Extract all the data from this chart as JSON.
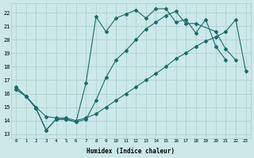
{
  "xlabel": "Humidex (Indice chaleur)",
  "bg_color": "#cce8e8",
  "grid_color": "#aacccc",
  "line_color": "#1a6b6b",
  "xlim": [
    -0.5,
    23.5
  ],
  "ylim": [
    12.7,
    22.7
  ],
  "yticks": [
    13,
    14,
    15,
    16,
    17,
    18,
    19,
    20,
    21,
    22
  ],
  "xticks": [
    0,
    1,
    2,
    3,
    4,
    5,
    6,
    7,
    8,
    9,
    10,
    11,
    12,
    13,
    14,
    15,
    16,
    17,
    18,
    19,
    20,
    21,
    22,
    23
  ],
  "line1_x": [
    0,
    1,
    2,
    3,
    4,
    5,
    6,
    7,
    8,
    9,
    10,
    11,
    12,
    13,
    14,
    15,
    16,
    17,
    18,
    19,
    20,
    21
  ],
  "line1_y": [
    16.5,
    15.8,
    14.9,
    13.3,
    14.1,
    14.1,
    13.9,
    16.8,
    21.7,
    20.6,
    21.6,
    21.9,
    22.2,
    21.6,
    22.3,
    22.3,
    21.3,
    21.5,
    20.5,
    21.5,
    19.5,
    18.5
  ],
  "line2_x": [
    0,
    1,
    2,
    3,
    4,
    5,
    6,
    7,
    8,
    9,
    10,
    11,
    12,
    13,
    14,
    15,
    16,
    17,
    18,
    20,
    21,
    22
  ],
  "line2_y": [
    16.3,
    15.8,
    14.9,
    13.3,
    14.1,
    14.1,
    13.9,
    14.1,
    15.5,
    17.2,
    18.5,
    19.2,
    20.0,
    20.8,
    21.3,
    21.8,
    22.1,
    21.2,
    21.2,
    20.6,
    19.3,
    18.5
  ],
  "line3_x": [
    0,
    1,
    2,
    3,
    4,
    5,
    6,
    7,
    8,
    9,
    10,
    11,
    12,
    13,
    14,
    15,
    16,
    17,
    18,
    19,
    20,
    21,
    22,
    23
  ],
  "line3_y": [
    16.3,
    15.8,
    15.0,
    14.3,
    14.2,
    14.2,
    14.0,
    14.2,
    14.5,
    15.0,
    15.5,
    16.0,
    16.5,
    17.0,
    17.5,
    18.0,
    18.6,
    19.0,
    19.5,
    19.9,
    20.2,
    20.6,
    21.5,
    17.7
  ]
}
